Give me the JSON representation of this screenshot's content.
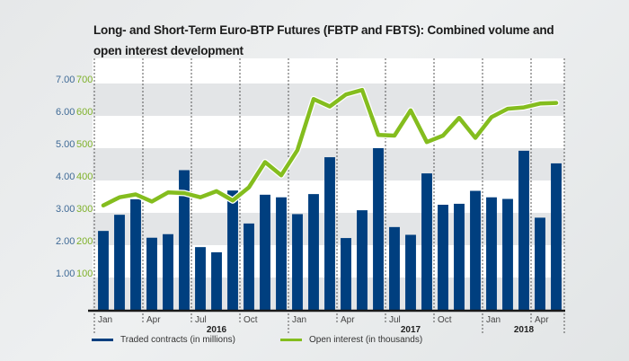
{
  "chart_data": {
    "type": "bar+line",
    "title": "Long- and Short-Term Euro-BTP Futures (FBTP and FBTS): Combined volume and open interest development",
    "categories": [
      "Jan 2016",
      "Feb 2016",
      "Mar 2016",
      "Apr 2016",
      "May 2016",
      "Jun 2016",
      "Jul 2016",
      "Aug 2016",
      "Sep 2016",
      "Oct 2016",
      "Nov 2016",
      "Dec 2016",
      "Jan 2017",
      "Feb 2017",
      "Mar 2017",
      "Apr 2017",
      "May 2017",
      "Jun 2017",
      "Jul 2017",
      "Aug 2017",
      "Sep 2017",
      "Oct 2017",
      "Nov 2017",
      "Dec 2017",
      "Jan 2018",
      "Feb 2018",
      "Mar 2018",
      "Apr 2018",
      "May 2018"
    ],
    "series": [
      {
        "name": "Traded contracts (in millions)",
        "type": "bar",
        "axis": "left",
        "color": "#003f7f",
        "values": [
          2.44,
          2.94,
          3.42,
          2.23,
          2.34,
          4.32,
          1.94,
          1.78,
          3.69,
          2.67,
          3.56,
          3.48,
          2.96,
          3.58,
          4.72,
          2.22,
          3.08,
          5.0,
          2.56,
          2.32,
          4.22,
          3.25,
          3.28,
          3.68,
          3.48,
          3.43,
          4.92,
          2.85,
          4.53
        ]
      },
      {
        "name": "Open interest (in thousands)",
        "type": "line",
        "axis": "right",
        "color": "#84bd1e",
        "values": [
          323,
          348,
          357,
          335,
          363,
          361,
          348,
          367,
          338,
          379,
          457,
          416,
          494,
          652,
          629,
          666,
          680,
          541,
          539,
          617,
          519,
          539,
          594,
          532,
          596,
          622,
          626,
          638,
          640
        ]
      }
    ],
    "y_left": {
      "ticks": [
        "1.00",
        "2.00",
        "3.00",
        "4.00",
        "5.00",
        "6.00",
        "7.00"
      ],
      "range": [
        0,
        7.5
      ],
      "color": "#3f6a96"
    },
    "y_right": {
      "ticks": [
        "100",
        "200",
        "300",
        "400",
        "500",
        "600",
        "700"
      ],
      "range": [
        0,
        750
      ],
      "color": "#7fb12a"
    },
    "x_ticks": [
      {
        "label": "Jan",
        "index": 0
      },
      {
        "label": "Apr",
        "index": 3
      },
      {
        "label": "Jul",
        "index": 6
      },
      {
        "label": "Oct",
        "index": 9
      },
      {
        "label": "Jan",
        "index": 12
      },
      {
        "label": "Apr",
        "index": 15
      },
      {
        "label": "Jul",
        "index": 18
      },
      {
        "label": "Oct",
        "index": 21
      },
      {
        "label": "Jan",
        "index": 24
      },
      {
        "label": "Apr",
        "index": 27
      }
    ],
    "x_years": [
      {
        "label": "2016",
        "index": 7
      },
      {
        "label": "2017",
        "index": 19
      },
      {
        "label": "2018",
        "index": 26
      }
    ],
    "grid": "alternating horizontal bands, dashed vertical quarter separators",
    "legend": "bottom-left"
  },
  "legend": {
    "bars_label": "Traded contracts (in millions)",
    "line_label": "Open interest (in thousands)"
  }
}
